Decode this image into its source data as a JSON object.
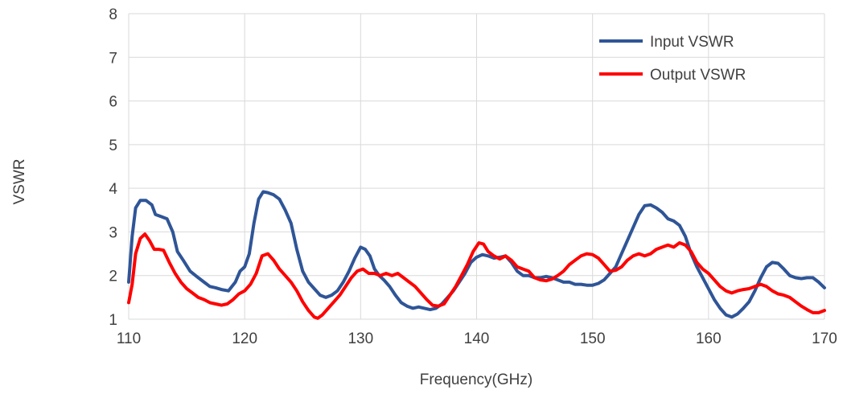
{
  "chart_data": {
    "type": "line",
    "title": "",
    "xlabel": "Frequency(GHz)",
    "ylabel": "VSWR",
    "xlim": [
      110,
      170
    ],
    "ylim": [
      1,
      8
    ],
    "x_ticks": [
      110,
      120,
      130,
      140,
      150,
      160,
      170
    ],
    "y_ticks": [
      1,
      2,
      3,
      4,
      5,
      6,
      7,
      8
    ],
    "grid": true,
    "legend_position": "top-right",
    "series": [
      {
        "name": "Input VSWR",
        "color": "#2f5597",
        "points": [
          [
            110,
            1.85
          ],
          [
            110.3,
            2.9
          ],
          [
            110.6,
            3.55
          ],
          [
            111,
            3.72
          ],
          [
            111.5,
            3.72
          ],
          [
            112,
            3.62
          ],
          [
            112.3,
            3.4
          ],
          [
            112.8,
            3.35
          ],
          [
            113.3,
            3.3
          ],
          [
            113.8,
            3.0
          ],
          [
            114.2,
            2.55
          ],
          [
            114.7,
            2.35
          ],
          [
            115.3,
            2.1
          ],
          [
            116,
            1.95
          ],
          [
            116.5,
            1.85
          ],
          [
            117,
            1.75
          ],
          [
            117.5,
            1.72
          ],
          [
            118,
            1.68
          ],
          [
            118.6,
            1.65
          ],
          [
            119.2,
            1.85
          ],
          [
            119.6,
            2.1
          ],
          [
            120,
            2.2
          ],
          [
            120.4,
            2.5
          ],
          [
            120.8,
            3.2
          ],
          [
            121.2,
            3.75
          ],
          [
            121.6,
            3.92
          ],
          [
            122,
            3.9
          ],
          [
            122.5,
            3.85
          ],
          [
            123,
            3.75
          ],
          [
            123.5,
            3.5
          ],
          [
            124,
            3.2
          ],
          [
            124.5,
            2.6
          ],
          [
            125,
            2.1
          ],
          [
            125.5,
            1.85
          ],
          [
            126,
            1.7
          ],
          [
            126.5,
            1.55
          ],
          [
            127,
            1.5
          ],
          [
            127.5,
            1.55
          ],
          [
            128,
            1.65
          ],
          [
            128.5,
            1.85
          ],
          [
            129,
            2.1
          ],
          [
            129.5,
            2.4
          ],
          [
            130,
            2.65
          ],
          [
            130.4,
            2.6
          ],
          [
            130.8,
            2.45
          ],
          [
            131.2,
            2.15
          ],
          [
            131.6,
            2.0
          ],
          [
            132,
            1.9
          ],
          [
            132.5,
            1.75
          ],
          [
            133,
            1.55
          ],
          [
            133.5,
            1.38
          ],
          [
            134,
            1.3
          ],
          [
            134.5,
            1.25
          ],
          [
            135,
            1.28
          ],
          [
            135.5,
            1.25
          ],
          [
            136,
            1.22
          ],
          [
            136.5,
            1.25
          ],
          [
            137,
            1.35
          ],
          [
            137.5,
            1.5
          ],
          [
            138,
            1.65
          ],
          [
            138.5,
            1.85
          ],
          [
            139,
            2.05
          ],
          [
            139.5,
            2.3
          ],
          [
            140,
            2.42
          ],
          [
            140.5,
            2.48
          ],
          [
            141,
            2.45
          ],
          [
            141.5,
            2.4
          ],
          [
            142,
            2.42
          ],
          [
            142.5,
            2.45
          ],
          [
            143,
            2.3
          ],
          [
            143.5,
            2.1
          ],
          [
            144,
            2.0
          ],
          [
            144.5,
            2.0
          ],
          [
            145,
            1.95
          ],
          [
            145.5,
            1.95
          ],
          [
            146,
            1.98
          ],
          [
            146.5,
            1.95
          ],
          [
            147,
            1.9
          ],
          [
            147.5,
            1.85
          ],
          [
            148,
            1.85
          ],
          [
            148.5,
            1.8
          ],
          [
            149,
            1.8
          ],
          [
            149.5,
            1.78
          ],
          [
            150,
            1.78
          ],
          [
            150.5,
            1.82
          ],
          [
            151,
            1.9
          ],
          [
            151.5,
            2.05
          ],
          [
            152,
            2.2
          ],
          [
            152.5,
            2.5
          ],
          [
            153,
            2.8
          ],
          [
            153.5,
            3.1
          ],
          [
            154,
            3.4
          ],
          [
            154.5,
            3.6
          ],
          [
            155,
            3.62
          ],
          [
            155.5,
            3.55
          ],
          [
            156,
            3.45
          ],
          [
            156.5,
            3.3
          ],
          [
            157,
            3.25
          ],
          [
            157.5,
            3.15
          ],
          [
            158,
            2.9
          ],
          [
            158.5,
            2.5
          ],
          [
            159,
            2.2
          ],
          [
            159.5,
            1.95
          ],
          [
            160,
            1.7
          ],
          [
            160.5,
            1.45
          ],
          [
            161,
            1.25
          ],
          [
            161.5,
            1.1
          ],
          [
            162,
            1.05
          ],
          [
            162.5,
            1.12
          ],
          [
            163,
            1.25
          ],
          [
            163.5,
            1.4
          ],
          [
            164,
            1.65
          ],
          [
            164.5,
            1.95
          ],
          [
            165,
            2.2
          ],
          [
            165.5,
            2.3
          ],
          [
            166,
            2.28
          ],
          [
            166.5,
            2.15
          ],
          [
            167,
            2.0
          ],
          [
            167.5,
            1.95
          ],
          [
            168,
            1.93
          ],
          [
            168.5,
            1.95
          ],
          [
            169,
            1.95
          ],
          [
            169.5,
            1.85
          ],
          [
            170,
            1.72
          ]
        ]
      },
      {
        "name": "Output VSWR",
        "color": "#ff0000",
        "points": [
          [
            110,
            1.38
          ],
          [
            110.3,
            1.8
          ],
          [
            110.6,
            2.5
          ],
          [
            111,
            2.85
          ],
          [
            111.4,
            2.95
          ],
          [
            111.8,
            2.8
          ],
          [
            112.2,
            2.6
          ],
          [
            112.6,
            2.6
          ],
          [
            113,
            2.58
          ],
          [
            113.5,
            2.3
          ],
          [
            114,
            2.05
          ],
          [
            114.5,
            1.85
          ],
          [
            115,
            1.7
          ],
          [
            115.5,
            1.6
          ],
          [
            116,
            1.5
          ],
          [
            116.5,
            1.45
          ],
          [
            117,
            1.38
          ],
          [
            117.5,
            1.35
          ],
          [
            118,
            1.32
          ],
          [
            118.5,
            1.35
          ],
          [
            119,
            1.45
          ],
          [
            119.5,
            1.58
          ],
          [
            120,
            1.65
          ],
          [
            120.5,
            1.8
          ],
          [
            121,
            2.05
          ],
          [
            121.5,
            2.45
          ],
          [
            122,
            2.5
          ],
          [
            122.5,
            2.35
          ],
          [
            123,
            2.15
          ],
          [
            123.5,
            2.0
          ],
          [
            124,
            1.85
          ],
          [
            124.5,
            1.65
          ],
          [
            125,
            1.4
          ],
          [
            125.5,
            1.2
          ],
          [
            126,
            1.05
          ],
          [
            126.3,
            1.02
          ],
          [
            126.7,
            1.1
          ],
          [
            127.2,
            1.25
          ],
          [
            127.7,
            1.4
          ],
          [
            128.2,
            1.55
          ],
          [
            128.7,
            1.75
          ],
          [
            129.2,
            1.95
          ],
          [
            129.7,
            2.1
          ],
          [
            130.2,
            2.15
          ],
          [
            130.7,
            2.05
          ],
          [
            131.2,
            2.05
          ],
          [
            131.7,
            2.0
          ],
          [
            132.2,
            2.05
          ],
          [
            132.7,
            2.0
          ],
          [
            133.2,
            2.05
          ],
          [
            133.7,
            1.95
          ],
          [
            134.2,
            1.85
          ],
          [
            134.7,
            1.75
          ],
          [
            135.2,
            1.6
          ],
          [
            135.7,
            1.45
          ],
          [
            136.2,
            1.32
          ],
          [
            136.7,
            1.3
          ],
          [
            137.2,
            1.35
          ],
          [
            137.7,
            1.55
          ],
          [
            138.2,
            1.75
          ],
          [
            138.7,
            2.0
          ],
          [
            139.2,
            2.25
          ],
          [
            139.7,
            2.55
          ],
          [
            140.2,
            2.75
          ],
          [
            140.6,
            2.72
          ],
          [
            141,
            2.55
          ],
          [
            141.5,
            2.45
          ],
          [
            142,
            2.38
          ],
          [
            142.5,
            2.45
          ],
          [
            143,
            2.35
          ],
          [
            143.5,
            2.2
          ],
          [
            144,
            2.15
          ],
          [
            144.5,
            2.1
          ],
          [
            145,
            1.95
          ],
          [
            145.5,
            1.9
          ],
          [
            146,
            1.88
          ],
          [
            146.5,
            1.92
          ],
          [
            147,
            2.0
          ],
          [
            147.5,
            2.1
          ],
          [
            148,
            2.25
          ],
          [
            148.5,
            2.35
          ],
          [
            149,
            2.45
          ],
          [
            149.5,
            2.5
          ],
          [
            150,
            2.48
          ],
          [
            150.5,
            2.4
          ],
          [
            151,
            2.25
          ],
          [
            151.5,
            2.1
          ],
          [
            152,
            2.12
          ],
          [
            152.5,
            2.2
          ],
          [
            153,
            2.35
          ],
          [
            153.5,
            2.45
          ],
          [
            154,
            2.5
          ],
          [
            154.5,
            2.45
          ],
          [
            155,
            2.5
          ],
          [
            155.5,
            2.6
          ],
          [
            156,
            2.65
          ],
          [
            156.5,
            2.7
          ],
          [
            157,
            2.65
          ],
          [
            157.5,
            2.75
          ],
          [
            158,
            2.7
          ],
          [
            158.5,
            2.55
          ],
          [
            159,
            2.3
          ],
          [
            159.5,
            2.15
          ],
          [
            160,
            2.05
          ],
          [
            160.5,
            1.9
          ],
          [
            161,
            1.75
          ],
          [
            161.5,
            1.65
          ],
          [
            162,
            1.6
          ],
          [
            162.5,
            1.65
          ],
          [
            163,
            1.68
          ],
          [
            163.5,
            1.7
          ],
          [
            164,
            1.75
          ],
          [
            164.5,
            1.8
          ],
          [
            165,
            1.75
          ],
          [
            165.5,
            1.65
          ],
          [
            166,
            1.58
          ],
          [
            166.5,
            1.55
          ],
          [
            167,
            1.5
          ],
          [
            167.5,
            1.4
          ],
          [
            168,
            1.3
          ],
          [
            168.5,
            1.22
          ],
          [
            169,
            1.15
          ],
          [
            169.5,
            1.15
          ],
          [
            170,
            1.2
          ]
        ]
      }
    ]
  }
}
